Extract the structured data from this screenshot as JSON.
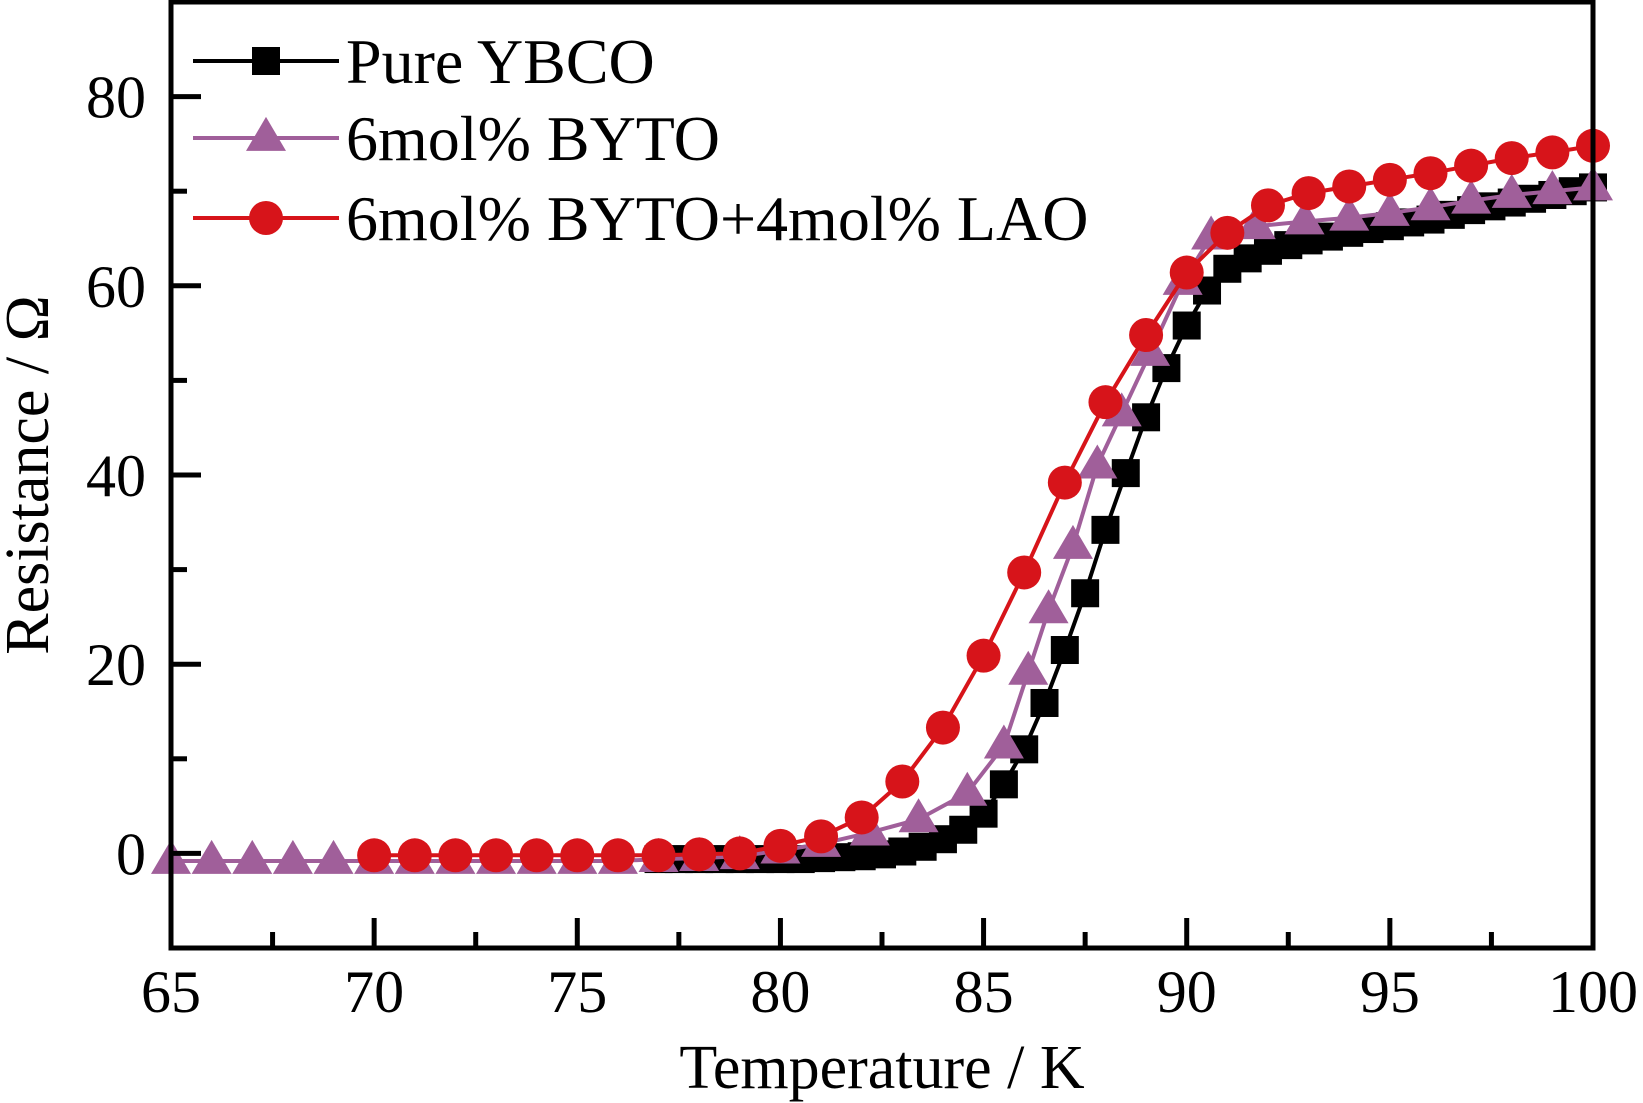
{
  "chart_data": {
    "type": "line",
    "title": "",
    "xlabel": "Temperature / K",
    "ylabel": "Resistance / Ω",
    "xlim": [
      65,
      100
    ],
    "ylim": [
      -10,
      90
    ],
    "xticks": [
      65,
      70,
      75,
      80,
      85,
      90,
      95,
      100
    ],
    "xtick_labels": [
      "65",
      "70",
      "75",
      "80",
      "85",
      "90",
      "95",
      "100"
    ],
    "yticks": [
      0,
      20,
      40,
      60,
      80
    ],
    "ytick_labels": [
      "0",
      "20",
      "40",
      "60",
      "80"
    ],
    "x_minor_step": 2.5,
    "y_minor_step": 10,
    "grid": false,
    "legend_position": "top-left",
    "series": [
      {
        "name": "Pure YBCO",
        "color": "#000000",
        "marker": "square",
        "x": [
          77,
          77.5,
          78,
          78.5,
          79,
          79.5,
          80,
          80.5,
          81,
          81.5,
          82,
          82.5,
          83,
          83.5,
          84,
          84.5,
          85,
          85.5,
          86,
          86.5,
          87,
          87.5,
          88,
          88.5,
          89,
          89.5,
          90,
          90.5,
          91,
          91.5,
          92,
          92.5,
          93,
          93.5,
          94,
          94.5,
          95,
          95.5,
          96,
          96.5,
          97,
          97.5,
          98,
          98.5,
          99,
          99.5,
          100
        ],
        "y": [
          -0.6,
          -0.6,
          -0.6,
          -0.6,
          -0.6,
          -0.6,
          -0.6,
          -0.6,
          -0.5,
          -0.4,
          -0.3,
          -0.1,
          0.2,
          0.7,
          1.5,
          2.5,
          4.2,
          7.3,
          11.0,
          15.9,
          21.5,
          27.5,
          34.2,
          40.2,
          46.1,
          51.3,
          55.8,
          59.5,
          61.8,
          62.9,
          63.7,
          64.3,
          64.8,
          65.2,
          65.6,
          66.0,
          66.3,
          66.7,
          67.0,
          67.5,
          68.0,
          68.4,
          68.8,
          69.2,
          69.6,
          70.0,
          70.4
        ]
      },
      {
        "name": "6mol% BYTO",
        "color": "#A05F9A",
        "marker": "triangle",
        "x": [
          65,
          66,
          67,
          68,
          69,
          70,
          71,
          72,
          73,
          74,
          75,
          76,
          77,
          78,
          79,
          80,
          81,
          82.2,
          83.4,
          84.6,
          85.5,
          86.1,
          86.6,
          87.2,
          87.8,
          88.4,
          89.1,
          89.9,
          90.6,
          91.7,
          92.9,
          94,
          95,
          96,
          97,
          98,
          99,
          100
        ],
        "y": [
          -0.8,
          -0.8,
          -0.8,
          -0.8,
          -0.8,
          -0.8,
          -0.8,
          -0.8,
          -0.8,
          -0.8,
          -0.8,
          -0.8,
          -0.6,
          -0.5,
          -0.3,
          0.3,
          1.0,
          2.2,
          3.6,
          6.4,
          11.4,
          19.2,
          25.7,
          32.5,
          41.0,
          46.5,
          52.9,
          60.4,
          65.2,
          66.3,
          66.8,
          67.2,
          67.7,
          68.3,
          69.0,
          69.6,
          70.0,
          70.4
        ]
      },
      {
        "name": "6mol% BYTO+4mol% LAO",
        "color": "#D7141A",
        "marker": "circle",
        "x": [
          70,
          71,
          72,
          73,
          74,
          75,
          76,
          77,
          78,
          79,
          80,
          81,
          82,
          83,
          84,
          85,
          86,
          87,
          88,
          89,
          90,
          91,
          92,
          93,
          94,
          95,
          96,
          97,
          98,
          99,
          100
        ],
        "y": [
          -0.2,
          -0.2,
          -0.2,
          -0.2,
          -0.2,
          -0.2,
          -0.2,
          -0.2,
          -0.1,
          0.0,
          0.8,
          1.8,
          3.8,
          7.6,
          13.3,
          20.9,
          29.7,
          39.2,
          47.7,
          54.8,
          61.4,
          65.6,
          68.5,
          69.8,
          70.5,
          71.2,
          71.9,
          72.7,
          73.5,
          74.1,
          74.8
        ]
      }
    ]
  }
}
